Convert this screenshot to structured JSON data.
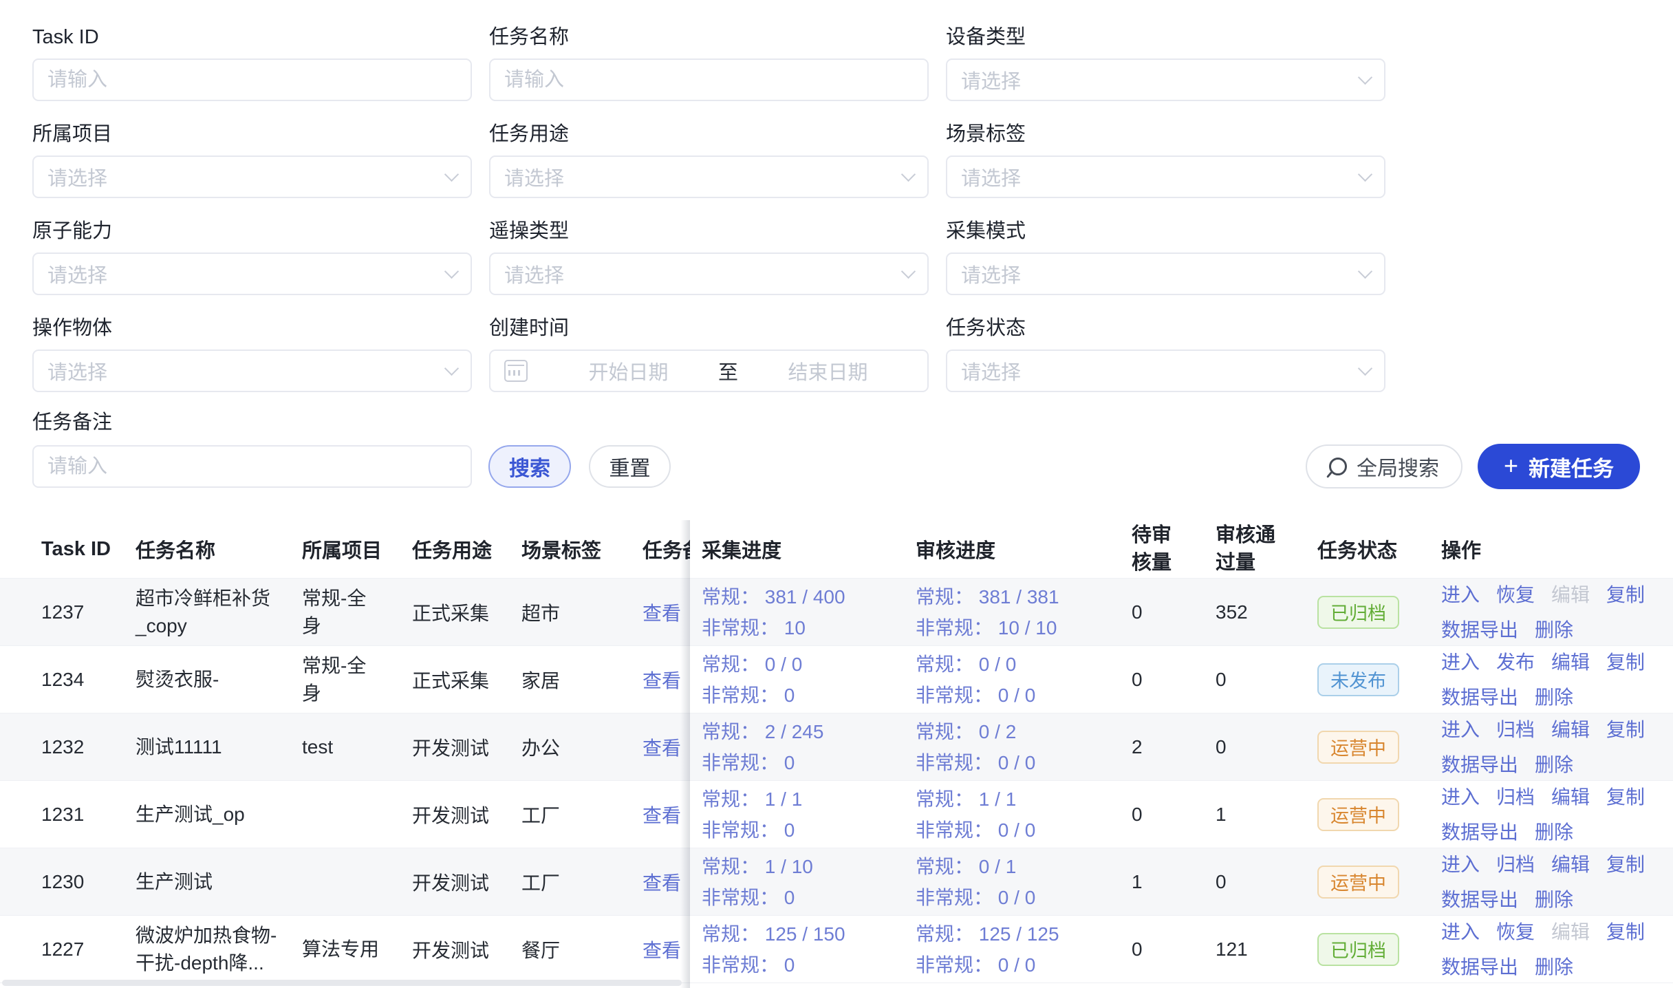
{
  "colors": {
    "primary": "#2b49d6",
    "link": "#5d6fd2",
    "progress": "#6e7dd4",
    "placeholder": "#c3c8d2",
    "border_input": "#e6e8ef",
    "stripe": "#f6f7f9",
    "row_border": "#eef0f4",
    "disabled_link": "#c3c7d1",
    "search_btn_bg": "#eef1fd",
    "search_btn_border": "#95a7ec",
    "search_btn_text": "#3b57d4",
    "archived_bg": "#eff8e9",
    "archived_border": "#b9e2a1",
    "archived_text": "#62ad36",
    "unpublished_bg": "#e9f3fb",
    "unpublished_border": "#aacfe9",
    "unpublished_text": "#5093d2",
    "operating_bg": "#fdf6ec",
    "operating_border": "#f1d7ae",
    "operating_text": "#d8862f"
  },
  "filters": {
    "fields": [
      {
        "label": "Task ID",
        "placeholder": "请输入",
        "type": "input"
      },
      {
        "label": "任务名称",
        "placeholder": "请输入",
        "type": "input"
      },
      {
        "label": "设备类型",
        "placeholder": "请选择",
        "type": "select"
      },
      {
        "label": "所属项目",
        "placeholder": "请选择",
        "type": "select"
      },
      {
        "label": "任务用途",
        "placeholder": "请选择",
        "type": "select"
      },
      {
        "label": "场景标签",
        "placeholder": "请选择",
        "type": "select"
      },
      {
        "label": "原子能力",
        "placeholder": "请选择",
        "type": "select"
      },
      {
        "label": "遥操类型",
        "placeholder": "请选择",
        "type": "select"
      },
      {
        "label": "采集模式",
        "placeholder": "请选择",
        "type": "select"
      },
      {
        "label": "操作物体",
        "placeholder": "请选择",
        "type": "select"
      },
      {
        "label": "创建时间",
        "type": "daterange",
        "start_placeholder": "开始日期",
        "separator": "至",
        "end_placeholder": "结束日期"
      },
      {
        "label": "任务状态",
        "placeholder": "请选择",
        "type": "select"
      },
      {
        "label": "任务备注",
        "placeholder": "请输入",
        "type": "input"
      }
    ],
    "search_label": "搜索",
    "reset_label": "重置"
  },
  "toolbar": {
    "global_search_label": "全局搜索",
    "new_task_label": "新建任务",
    "plus_icon": "+"
  },
  "table": {
    "headers": {
      "task_id": "Task ID",
      "name": "任务名称",
      "project": "所属项目",
      "purpose": "任务用途",
      "scene": "场景标签",
      "remark": "任务备注",
      "collect": "采集进度",
      "review": "审核进度",
      "pending": "待审核量",
      "approved": "审核通过量",
      "status": "任务状态",
      "actions": "操作"
    },
    "rows": [
      {
        "task_id": "1237",
        "name": "超市冷鲜柜补货_copy",
        "project": "常规-全身",
        "purpose": "正式采集",
        "scene": "超市",
        "remark_link": "查看",
        "collect": [
          "常规： 381 / 400",
          "非常规： 10"
        ],
        "review": [
          "常规： 381 / 381",
          "非常规： 10 / 10"
        ],
        "pending": "0",
        "approved": "352",
        "status": {
          "label": "已归档",
          "kind": "archived"
        },
        "actions": [
          {
            "label": "进入"
          },
          {
            "label": "恢复"
          },
          {
            "label": "编辑",
            "disabled": true
          },
          {
            "label": "复制"
          },
          {
            "label": "数据导出"
          },
          {
            "label": "删除"
          }
        ]
      },
      {
        "task_id": "1234",
        "name": "熨烫衣服-",
        "project": "常规-全身",
        "purpose": "正式采集",
        "scene": "家居",
        "remark_link": "查看",
        "collect": [
          "常规： 0 / 0",
          "非常规： 0"
        ],
        "review": [
          "常规： 0 / 0",
          "非常规： 0 / 0"
        ],
        "pending": "0",
        "approved": "0",
        "status": {
          "label": "未发布",
          "kind": "unpublished"
        },
        "actions": [
          {
            "label": "进入"
          },
          {
            "label": "发布"
          },
          {
            "label": "编辑"
          },
          {
            "label": "复制"
          },
          {
            "label": "数据导出"
          },
          {
            "label": "删除"
          }
        ]
      },
      {
        "task_id": "1232",
        "name": "测试11111",
        "project": "test",
        "purpose": "开发测试",
        "scene": "办公",
        "remark_link": "查看",
        "collect": [
          "常规： 2 / 245",
          "非常规： 0"
        ],
        "review": [
          "常规： 0 / 2",
          "非常规： 0 / 0"
        ],
        "pending": "2",
        "approved": "0",
        "status": {
          "label": "运营中",
          "kind": "operating"
        },
        "actions": [
          {
            "label": "进入"
          },
          {
            "label": "归档"
          },
          {
            "label": "编辑"
          },
          {
            "label": "复制"
          },
          {
            "label": "数据导出"
          },
          {
            "label": "删除"
          }
        ]
      },
      {
        "task_id": "1231",
        "name": "生产测试_op",
        "project": "",
        "purpose": "开发测试",
        "scene": "工厂",
        "remark_link": "查看",
        "collect": [
          "常规： 1 / 1",
          "非常规： 0"
        ],
        "review": [
          "常规： 1 / 1",
          "非常规： 0 / 0"
        ],
        "pending": "0",
        "approved": "1",
        "status": {
          "label": "运营中",
          "kind": "operating"
        },
        "actions": [
          {
            "label": "进入"
          },
          {
            "label": "归档"
          },
          {
            "label": "编辑"
          },
          {
            "label": "复制"
          },
          {
            "label": "数据导出"
          },
          {
            "label": "删除"
          }
        ]
      },
      {
        "task_id": "1230",
        "name": "生产测试",
        "project": "",
        "purpose": "开发测试",
        "scene": "工厂",
        "remark_link": "查看",
        "collect": [
          "常规： 1 / 10",
          "非常规： 0"
        ],
        "review": [
          "常规： 0 / 1",
          "非常规： 0 / 0"
        ],
        "pending": "1",
        "approved": "0",
        "status": {
          "label": "运营中",
          "kind": "operating"
        },
        "actions": [
          {
            "label": "进入"
          },
          {
            "label": "归档"
          },
          {
            "label": "编辑"
          },
          {
            "label": "复制"
          },
          {
            "label": "数据导出"
          },
          {
            "label": "删除"
          }
        ]
      },
      {
        "task_id": "1227",
        "name": "微波炉加热食物-干扰-depth降...",
        "project": "算法专用",
        "purpose": "开发测试",
        "scene": "餐厅",
        "remark_link": "查看",
        "collect": [
          "常规： 125 / 150",
          "非常规： 0"
        ],
        "review": [
          "常规： 125 / 125",
          "非常规： 0 / 0"
        ],
        "pending": "0",
        "approved": "121",
        "status": {
          "label": "已归档",
          "kind": "archived"
        },
        "actions": [
          {
            "label": "进入"
          },
          {
            "label": "恢复"
          },
          {
            "label": "编辑",
            "disabled": true
          },
          {
            "label": "复制"
          },
          {
            "label": "数据导出"
          },
          {
            "label": "删除"
          }
        ]
      }
    ]
  }
}
